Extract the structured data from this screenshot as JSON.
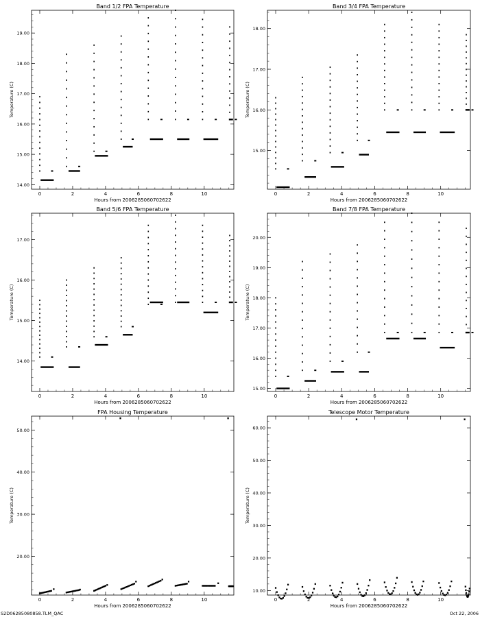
{
  "footer": {
    "filename": "S2D06285080858.TLM_QAC",
    "date": "Oct 22, 2006"
  },
  "colors": {
    "background": "#ffffff",
    "ink": "#000000"
  },
  "chart_data": [
    {
      "type": "scatter",
      "title": "Band 1/2 FPA Temperature",
      "xlabel": "Hours from 2006285060702622",
      "ylabel": "Temperature (C)",
      "xlim": [
        -0.5,
        11.8
      ],
      "ylim": [
        13.85,
        19.75
      ],
      "x_ticks": [
        0,
        2,
        4,
        6,
        8,
        10
      ],
      "y_ticks": [
        14,
        15,
        16,
        17,
        18,
        19
      ],
      "y_tick_labels": [
        "14.00",
        "15.00",
        "16.00",
        "17.00",
        "18.00",
        "19.00"
      ],
      "grid": false,
      "groups": [
        {
          "x0": 0.0,
          "y_start": 16.9,
          "y_end": 14.45,
          "x_plateau": [
            0.05,
            0.85
          ],
          "y_plateau": 14.15
        },
        {
          "x0": 1.62,
          "y_start": 18.3,
          "y_end": 14.6,
          "x_plateau": [
            1.75,
            2.45
          ],
          "y_plateau": 14.45
        },
        {
          "x0": 3.3,
          "y_start": 18.6,
          "y_end": 15.1,
          "x_plateau": [
            3.35,
            4.15
          ],
          "y_plateau": 14.95
        },
        {
          "x0": 4.95,
          "y_start": 18.9,
          "y_end": 15.5,
          "x_plateau": [
            5.05,
            5.65
          ],
          "y_plateau": 15.25
        },
        {
          "x0": 6.6,
          "y_start": 19.5,
          "y_end": 16.15,
          "x_plateau": [
            6.7,
            7.5
          ],
          "y_plateau": 15.5
        },
        {
          "x0": 8.25,
          "y_start": 19.75,
          "y_end": 16.15,
          "x_plateau": [
            8.35,
            9.1
          ],
          "y_plateau": 15.5
        },
        {
          "x0": 9.9,
          "y_start": 19.45,
          "y_end": 16.15,
          "x_plateau": [
            9.95,
            10.85
          ],
          "y_plateau": 15.5
        },
        {
          "x0": 11.55,
          "y_start": 19.2,
          "y_end": 16.15,
          "x_plateau": [
            11.5,
            11.75
          ],
          "y_plateau": 16.15
        }
      ]
    },
    {
      "type": "scatter",
      "title": "Band 3/4 FPA Temperature",
      "xlabel": "Hours from 2006285060702622",
      "ylabel": "Temperature (C)",
      "xlim": [
        -0.5,
        11.8
      ],
      "ylim": [
        14.05,
        18.45
      ],
      "x_ticks": [
        0,
        2,
        4,
        6,
        8,
        10
      ],
      "y_ticks": [
        15,
        16,
        17,
        18
      ],
      "y_tick_labels": [
        "15.00",
        "16.00",
        "17.00",
        "18.00"
      ],
      "grid": false,
      "groups": [
        {
          "x0": 0.0,
          "y_start": 16.3,
          "y_end": 14.55,
          "x_plateau": [
            0.05,
            0.85
          ],
          "y_plateau": 14.1
        },
        {
          "x0": 1.62,
          "y_start": 16.8,
          "y_end": 14.75,
          "x_plateau": [
            1.75,
            2.45
          ],
          "y_plateau": 14.35
        },
        {
          "x0": 3.3,
          "y_start": 17.05,
          "y_end": 14.95,
          "x_plateau": [
            3.35,
            4.15
          ],
          "y_plateau": 14.6
        },
        {
          "x0": 4.95,
          "y_start": 17.35,
          "y_end": 15.25,
          "x_plateau": [
            5.05,
            5.65
          ],
          "y_plateau": 14.9
        },
        {
          "x0": 6.6,
          "y_start": 18.1,
          "y_end": 16.0,
          "x_plateau": [
            6.7,
            7.5
          ],
          "y_plateau": 15.45
        },
        {
          "x0": 8.25,
          "y_start": 18.4,
          "y_end": 16.0,
          "x_plateau": [
            8.35,
            9.1
          ],
          "y_plateau": 15.45
        },
        {
          "x0": 9.9,
          "y_start": 18.1,
          "y_end": 16.0,
          "x_plateau": [
            9.95,
            10.85
          ],
          "y_plateau": 15.45
        },
        {
          "x0": 11.55,
          "y_start": 17.85,
          "y_end": 16.0,
          "x_plateau": [
            11.5,
            11.75
          ],
          "y_plateau": 16.0
        }
      ]
    },
    {
      "type": "scatter",
      "title": "Band 5/6 FPA Temperature",
      "xlabel": "Hours from 2006285060702622",
      "ylabel": "Temperature (C)",
      "xlim": [
        -0.5,
        11.8
      ],
      "ylim": [
        13.25,
        17.65
      ],
      "x_ticks": [
        0,
        2,
        4,
        6,
        8,
        10
      ],
      "y_ticks": [
        14,
        15,
        16,
        17
      ],
      "y_tick_labels": [
        "14.00",
        "15.00",
        "16.00",
        "17.00"
      ],
      "grid": false,
      "groups": [
        {
          "x0": 0.0,
          "y_start": 15.5,
          "y_end": 14.1,
          "x_plateau": [
            0.05,
            0.85
          ],
          "y_plateau": 13.85
        },
        {
          "x0": 1.62,
          "y_start": 16.0,
          "y_end": 14.35,
          "x_plateau": [
            1.75,
            2.45
          ],
          "y_plateau": 13.85
        },
        {
          "x0": 3.3,
          "y_start": 16.3,
          "y_end": 14.6,
          "x_plateau": [
            3.35,
            4.15
          ],
          "y_plateau": 14.4
        },
        {
          "x0": 4.95,
          "y_start": 16.55,
          "y_end": 14.85,
          "x_plateau": [
            5.05,
            5.65
          ],
          "y_plateau": 14.65
        },
        {
          "x0": 6.6,
          "y_start": 17.35,
          "y_end": 15.4,
          "x_plateau": [
            6.7,
            7.5
          ],
          "y_plateau": 15.45
        },
        {
          "x0": 8.25,
          "y_start": 17.6,
          "y_end": 15.45,
          "x_plateau": [
            8.35,
            9.1
          ],
          "y_plateau": 15.45
        },
        {
          "x0": 9.9,
          "y_start": 17.35,
          "y_end": 15.45,
          "x_plateau": [
            9.95,
            10.85
          ],
          "y_plateau": 15.2
        },
        {
          "x0": 11.55,
          "y_start": 17.1,
          "y_end": 15.45,
          "x_plateau": [
            11.5,
            11.75
          ],
          "y_plateau": 15.45
        }
      ]
    },
    {
      "type": "scatter",
      "title": "Band 7/8 FPA Temperature",
      "xlabel": "Hours from 2006285060702622",
      "ylabel": "Temperature (C)",
      "xlim": [
        -0.5,
        11.8
      ],
      "ylim": [
        14.9,
        20.8
      ],
      "x_ticks": [
        0,
        2,
        4,
        6,
        8,
        10
      ],
      "y_ticks": [
        15,
        16,
        17,
        18,
        19,
        20
      ],
      "y_tick_labels": [
        "15.00",
        "16.00",
        "17.00",
        "18.00",
        "19.00",
        "20.00"
      ],
      "grid": false,
      "groups": [
        {
          "x0": 0.0,
          "y_start": 18.0,
          "y_end": 15.4,
          "x_plateau": [
            0.05,
            0.85
          ],
          "y_plateau": 15.0
        },
        {
          "x0": 1.62,
          "y_start": 19.2,
          "y_end": 15.6,
          "x_plateau": [
            1.75,
            2.45
          ],
          "y_plateau": 15.25
        },
        {
          "x0": 3.3,
          "y_start": 19.45,
          "y_end": 15.9,
          "x_plateau": [
            3.35,
            4.15
          ],
          "y_plateau": 15.55
        },
        {
          "x0": 4.95,
          "y_start": 19.75,
          "y_end": 16.2,
          "x_plateau": [
            5.05,
            5.65
          ],
          "y_plateau": 15.55
        },
        {
          "x0": 6.6,
          "y_start": 20.5,
          "y_end": 16.85,
          "x_plateau": [
            6.7,
            7.5
          ],
          "y_plateau": 16.65
        },
        {
          "x0": 8.25,
          "y_start": 20.8,
          "y_end": 16.85,
          "x_plateau": [
            8.35,
            9.1
          ],
          "y_plateau": 16.65
        },
        {
          "x0": 9.9,
          "y_start": 20.5,
          "y_end": 16.85,
          "x_plateau": [
            9.95,
            10.85
          ],
          "y_plateau": 16.35
        },
        {
          "x0": 11.55,
          "y_start": 20.3,
          "y_end": 16.85,
          "x_plateau": [
            11.5,
            11.75
          ],
          "y_plateau": 16.85
        }
      ]
    },
    {
      "type": "scatter",
      "title": "FPA Housing Temperature",
      "xlabel": "Hours from 2006285060702622",
      "ylabel": "Temperature (C)",
      "xlim": [
        -0.5,
        11.8
      ],
      "ylim": [
        10.8,
        53.3
      ],
      "x_ticks": [
        0,
        2,
        4,
        6,
        8,
        10
      ],
      "y_ticks": [
        20,
        30,
        40,
        50
      ],
      "y_tick_labels": [
        "20.00",
        "30.00",
        "40.00",
        "50.00"
      ],
      "grid": false,
      "segments": [
        {
          "x": [
            0.0,
            0.7
          ],
          "y": [
            11.2,
            11.8
          ],
          "end_x": 0.85,
          "end_y": 12.2
        },
        {
          "x": [
            1.62,
            2.4
          ],
          "y": [
            11.4,
            12.0
          ],
          "end_x": 2.45,
          "end_y": 12.1
        },
        {
          "x": [
            3.3,
            4.0
          ],
          "y": [
            11.8,
            13.0
          ],
          "end_x": 4.1,
          "end_y": 13.2
        },
        {
          "x": [
            4.95,
            5.75
          ],
          "y": [
            12.2,
            13.5
          ],
          "end_x": 5.85,
          "end_y": 14.0
        },
        {
          "x": [
            6.6,
            7.35
          ],
          "y": [
            12.9,
            14.2
          ],
          "end_x": 7.45,
          "end_y": 14.5
        },
        {
          "x": [
            8.25,
            8.95
          ],
          "y": [
            13.0,
            13.5
          ],
          "end_x": 9.05,
          "end_y": 14.0
        },
        {
          "x": [
            9.9,
            10.65
          ],
          "y": [
            13.0,
            13.0
          ],
          "end_x": 10.85,
          "end_y": 13.6
        },
        {
          "x": [
            11.5,
            11.75
          ],
          "y": [
            12.9,
            12.9
          ]
        }
      ],
      "spikes": [
        {
          "x": 4.9,
          "y": 52.8
        },
        {
          "x": 11.45,
          "y": 52.8
        }
      ]
    },
    {
      "type": "scatter",
      "title": "Telescope Motor Temperature",
      "xlabel": "Hours from 2006285060702622",
      "ylabel": "Temperature (C)",
      "xlim": [
        -0.5,
        11.8
      ],
      "ylim": [
        8.6,
        63.6
      ],
      "x_ticks": [
        0,
        2,
        4,
        6,
        8,
        10
      ],
      "y_ticks": [
        10,
        20,
        30,
        40,
        50,
        60
      ],
      "y_tick_labels": [
        "10.00",
        "20.00",
        "30.00",
        "40.00",
        "50.00",
        "60.00"
      ],
      "grid": false,
      "segments": [
        {
          "x": [
            0.0,
            0.75
          ],
          "y": [
            9.6,
            10.4
          ],
          "start_y": 10.8,
          "dip": 9.3,
          "end_y": 11.8
        },
        {
          "x": [
            1.62,
            2.4
          ],
          "y": [
            10.1,
            10.9
          ],
          "start_y": 11.1,
          "dip": 9.6,
          "end_y": 12.0
        },
        {
          "x": [
            3.3,
            4.05
          ],
          "y": [
            10.3,
            11.3
          ],
          "start_y": 11.5,
          "dip": 9.9,
          "end_y": 12.4
        },
        {
          "x": [
            4.95,
            5.7
          ],
          "y": [
            10.9,
            12.0
          ],
          "start_y": 12.0,
          "dip": 10.2,
          "end_y": 13.2
        },
        {
          "x": [
            6.6,
            7.35
          ],
          "y": [
            11.6,
            12.8
          ],
          "start_y": 12.5,
          "dip": 11.1,
          "end_y": 13.9
        },
        {
          "x": [
            8.25,
            8.95
          ],
          "y": [
            11.6,
            12.3
          ],
          "start_y": 12.6,
          "dip": 11.0,
          "end_y": 12.8
        },
        {
          "x": [
            9.9,
            10.65
          ],
          "y": [
            11.3,
            12.3
          ],
          "start_y": 12.3,
          "dip": 10.8,
          "end_y": 12.8
        },
        {
          "x": [
            11.5,
            11.75
          ],
          "y": [
            11.2,
            10.6
          ],
          "start_y": 11.2,
          "dip": 10.6,
          "end_y": 10.6
        }
      ],
      "spikes": [
        {
          "x": 4.9,
          "y": 62.6
        },
        {
          "x": 11.45,
          "y": 62.6
        }
      ]
    }
  ]
}
